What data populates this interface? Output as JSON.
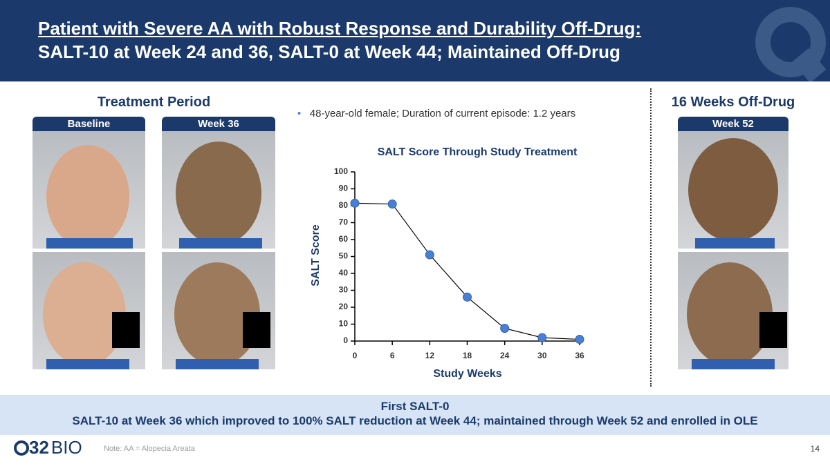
{
  "header": {
    "title_line1": "Patient with Severe AA with Robust Response and Durability Off-Drug:",
    "title_line2": "SALT-10 at Week 24 and 36, SALT-0 at Week 44; Maintained Off-Drug"
  },
  "treatment": {
    "heading": "Treatment Period",
    "photo_labels": [
      "Baseline",
      "Week 36"
    ]
  },
  "off_drug": {
    "heading": "16 Weeks Off-Drug",
    "photo_label": "Week 52"
  },
  "bullet": "48-year-old female; Duration of current episode: 1.2 years",
  "chart_data": {
    "type": "line",
    "title": "SALT Score Through Study Treatment",
    "x_label": "Study Weeks",
    "y_label": "SALT Score",
    "x": [
      0,
      6,
      12,
      18,
      24,
      30,
      36
    ],
    "values": [
      81.5,
      81,
      51,
      26,
      7.5,
      2,
      1
    ],
    "color": "#4a7fd6",
    "xlim": [
      0,
      36
    ],
    "xticks": [
      0,
      6,
      12,
      18,
      24,
      30,
      36
    ],
    "ylim": [
      0,
      100
    ],
    "yticks": [
      0,
      10,
      20,
      30,
      40,
      50,
      60,
      70,
      80,
      90,
      100
    ]
  },
  "banner": {
    "title": "First SALT-0",
    "text": "SALT-10 at Week 36 which improved to 100% SALT reduction at Week 44; maintained through Week 52 and enrolled in OLE"
  },
  "footer": {
    "brand_number": "32",
    "brand_word": "BIO",
    "note": "Note: AA = Alopecia Areata",
    "page_number": "14"
  }
}
